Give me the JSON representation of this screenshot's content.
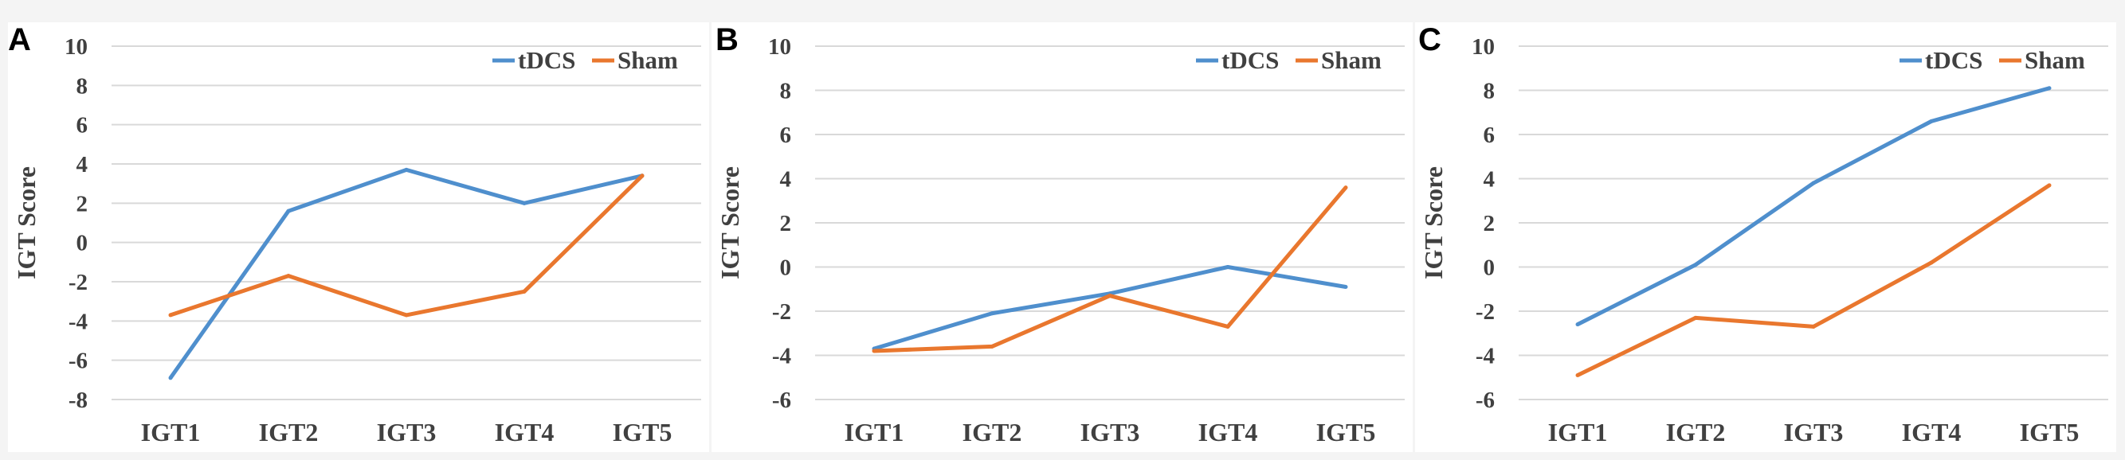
{
  "colors": {
    "tdcs": "#4f8fcd",
    "sham": "#e9772e",
    "grid": "#d9d9d9",
    "text": "#404040"
  },
  "chart_data": [
    {
      "panel": "A",
      "type": "line",
      "categories": [
        "IGT1",
        "IGT2",
        "IGT3",
        "IGT4",
        "IGT5"
      ],
      "ylabel": "IGT Score",
      "ylim": [
        -8,
        10
      ],
      "yticks": [
        "10",
        "8",
        "6",
        "4",
        "2",
        "0",
        "-2",
        "-4",
        "-6",
        "-8"
      ],
      "grid": true,
      "legend": "top-right",
      "series": [
        {
          "name": "tDCS",
          "values": [
            -6.9,
            1.6,
            3.7,
            2.0,
            3.4
          ]
        },
        {
          "name": "Sham",
          "values": [
            -3.7,
            -1.7,
            -3.7,
            -2.5,
            3.4
          ]
        }
      ]
    },
    {
      "panel": "B",
      "type": "line",
      "categories": [
        "IGT1",
        "IGT2",
        "IGT3",
        "IGT4",
        "IGT5"
      ],
      "ylabel": "IGT Score",
      "ylim": [
        -6,
        10
      ],
      "yticks": [
        "10",
        "8",
        "6",
        "4",
        "2",
        "0",
        "-2",
        "-4",
        "-6"
      ],
      "grid": true,
      "legend": "top-right",
      "series": [
        {
          "name": "tDCS",
          "values": [
            -3.7,
            -2.1,
            -1.2,
            0.0,
            -0.9
          ]
        },
        {
          "name": "Sham",
          "values": [
            -3.8,
            -3.6,
            -1.3,
            -2.7,
            3.6
          ]
        }
      ]
    },
    {
      "panel": "C",
      "type": "line",
      "categories": [
        "IGT1",
        "IGT2",
        "IGT3",
        "IGT4",
        "IGT5"
      ],
      "ylabel": "IGT Score",
      "ylim": [
        -6,
        10
      ],
      "yticks": [
        "10",
        "8",
        "6",
        "4",
        "2",
        "0",
        "-2",
        "-4",
        "-6"
      ],
      "grid": true,
      "legend": "top-right",
      "series": [
        {
          "name": "tDCS",
          "values": [
            -2.6,
            0.1,
            3.8,
            6.6,
            8.1
          ]
        },
        {
          "name": "Sham",
          "values": [
            -4.9,
            -2.3,
            -2.7,
            0.2,
            3.7
          ]
        }
      ]
    }
  ]
}
